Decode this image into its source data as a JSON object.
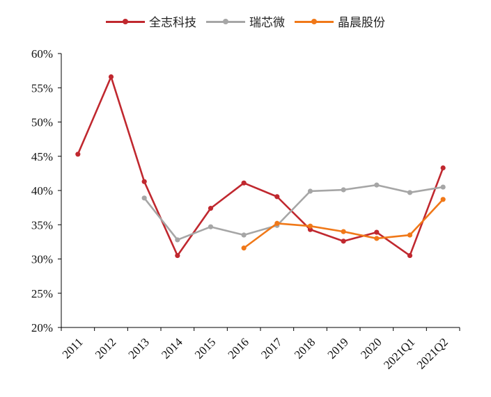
{
  "chart_data": {
    "type": "line",
    "title": "",
    "xlabel": "",
    "ylabel": "",
    "categories": [
      "2011",
      "2012",
      "2013",
      "2014",
      "2015",
      "2016",
      "2017",
      "2018",
      "2019",
      "2020",
      "2021Q1",
      "2021Q2"
    ],
    "ylim": [
      20,
      60
    ],
    "yticks": [
      "20%",
      "25%",
      "30%",
      "35%",
      "40%",
      "45%",
      "50%",
      "55%",
      "60%"
    ],
    "legend_position": "top-center",
    "grid": false,
    "series": [
      {
        "name": "全志科技",
        "color": "#c0282f",
        "values": [
          45.3,
          56.6,
          41.3,
          30.5,
          37.4,
          41.1,
          39.1,
          34.3,
          32.6,
          33.9,
          30.5,
          43.3
        ]
      },
      {
        "name": "瑞芯微",
        "color": "#a6a6a6",
        "values": [
          null,
          null,
          38.9,
          32.8,
          34.7,
          33.5,
          34.9,
          39.9,
          40.1,
          40.8,
          39.7,
          40.5
        ]
      },
      {
        "name": "晶晨股份",
        "color": "#f07818",
        "values": [
          null,
          null,
          null,
          null,
          null,
          31.6,
          35.2,
          34.8,
          34.0,
          33.0,
          33.5,
          38.7
        ]
      }
    ]
  }
}
